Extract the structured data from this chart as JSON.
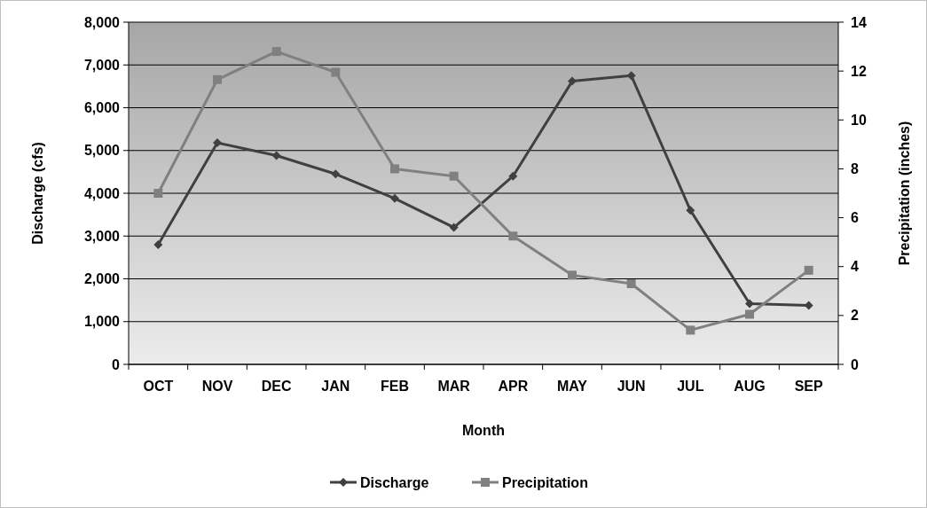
{
  "chart_data": {
    "type": "line",
    "xlabel": "Month",
    "ylabel": "Discharge (cfs)",
    "y2label": "Precipitation (inches)",
    "categories": [
      "OCT",
      "NOV",
      "DEC",
      "JAN",
      "FEB",
      "MAR",
      "APR",
      "MAY",
      "JUN",
      "JUL",
      "AUG",
      "SEP"
    ],
    "series": [
      {
        "name": "Discharge",
        "color": "#404040",
        "marker": "diamond",
        "values": [
          2800,
          5180,
          4880,
          4450,
          3880,
          3200,
          4400,
          6620,
          6750,
          3600,
          1420,
          1380
        ]
      },
      {
        "name": "Precipitation",
        "color": "#808080",
        "marker": "square",
        "axis": "y2",
        "values": [
          7.0,
          11.65,
          12.8,
          11.95,
          8.0,
          7.7,
          5.25,
          3.65,
          3.3,
          1.4,
          2.05,
          3.85
        ]
      }
    ],
    "ylim": [
      0,
      8000
    ],
    "yticks": [
      {
        "value": 0,
        "label": "0"
      },
      {
        "value": 1000,
        "label": "1,000"
      },
      {
        "value": 2000,
        "label": "2,000"
      },
      {
        "value": 3000,
        "label": "3,000"
      },
      {
        "value": 4000,
        "label": "4,000"
      },
      {
        "value": 5000,
        "label": "5,000"
      },
      {
        "value": 6000,
        "label": "6,000"
      },
      {
        "value": 7000,
        "label": "7,000"
      },
      {
        "value": 8000,
        "label": "8,000"
      }
    ],
    "y2lim": [
      0,
      14
    ],
    "y2ticks": [
      0,
      2,
      4,
      6,
      8,
      10,
      12,
      14
    ],
    "grid": "y",
    "legend": "bottom",
    "line_style": "solid"
  }
}
